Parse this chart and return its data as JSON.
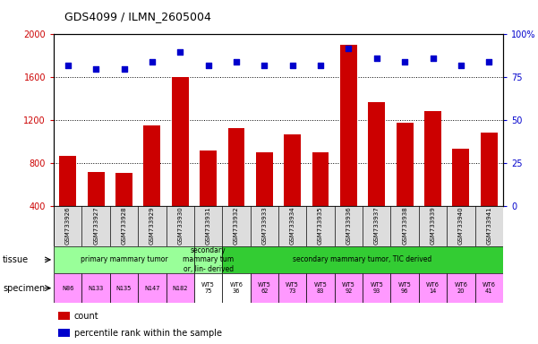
{
  "title": "GDS4099 / ILMN_2605004",
  "samples": [
    "GSM733926",
    "GSM733927",
    "GSM733928",
    "GSM733929",
    "GSM733930",
    "GSM733931",
    "GSM733932",
    "GSM733933",
    "GSM733934",
    "GSM733935",
    "GSM733936",
    "GSM733937",
    "GSM733938",
    "GSM733939",
    "GSM733940",
    "GSM733941"
  ],
  "counts": [
    870,
    720,
    710,
    1150,
    1600,
    920,
    1130,
    900,
    1070,
    900,
    1900,
    1370,
    1180,
    1290,
    940,
    1090
  ],
  "percentile_ranks": [
    82,
    80,
    80,
    84,
    90,
    82,
    84,
    82,
    82,
    82,
    92,
    86,
    84,
    86,
    82,
    84
  ],
  "bar_color": "#cc0000",
  "dot_color": "#0000cc",
  "ylim_left": [
    400,
    2000
  ],
  "ylim_right": [
    0,
    100
  ],
  "yticks_left": [
    400,
    800,
    1200,
    1600,
    2000
  ],
  "yticks_right": [
    0,
    25,
    50,
    75,
    100
  ],
  "ytick_right_labels": [
    "0",
    "25",
    "50",
    "75",
    "100%"
  ],
  "hgrid_vals": [
    800,
    1200,
    1600
  ],
  "tissue_ranges": [
    {
      "start": 0,
      "end": 5,
      "color": "#99ff99",
      "label": "primary mammary tumor"
    },
    {
      "start": 5,
      "end": 6,
      "color": "#99ff99",
      "label": "secondary\nmammary tum\nor, lin- derived"
    },
    {
      "start": 6,
      "end": 16,
      "color": "#33cc33",
      "label": "secondary mammary tumor, TIC derived"
    }
  ],
  "specimen_labels": [
    "N86",
    "N133",
    "N135",
    "N147",
    "N182",
    "WT5\n75",
    "WT6\n36",
    "WT5\n62",
    "WT5\n73",
    "WT5\n83",
    "WT5\n92",
    "WT5\n93",
    "WT5\n96",
    "WT6\n14",
    "WT6\n20",
    "WT6\n41"
  ],
  "specimen_colors": [
    "#ff99ff",
    "#ff99ff",
    "#ff99ff",
    "#ff99ff",
    "#ff99ff",
    "#ffffff",
    "#ffffff",
    "#ff99ff",
    "#ff99ff",
    "#ff99ff",
    "#ff99ff",
    "#ff99ff",
    "#ff99ff",
    "#ff99ff",
    "#ff99ff",
    "#ff99ff"
  ],
  "tick_color_left": "#cc0000",
  "tick_color_right": "#0000cc",
  "xticklabel_bg": "#dddddd"
}
